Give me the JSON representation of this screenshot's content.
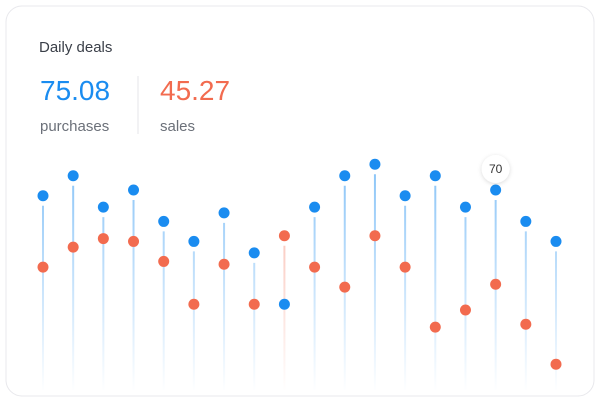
{
  "chart_data": {
    "type": "lollipop",
    "title": "Daily deals",
    "series": [
      {
        "name": "purchases",
        "total": 75.08,
        "color": "#1a8cf0",
        "values": [
          68,
          75,
          64,
          70,
          59,
          52,
          62,
          48,
          30,
          64,
          75,
          79,
          68,
          75,
          64,
          70,
          59,
          52
        ]
      },
      {
        "name": "sales",
        "total": 45.27,
        "color": "#f26b4f",
        "values": [
          43,
          50,
          53,
          52,
          45,
          30,
          44,
          30,
          54,
          43,
          36,
          54,
          43,
          22,
          28,
          37,
          23,
          9
        ]
      }
    ],
    "ylim": [
      0,
      87.5
    ],
    "tooltip_index": 15
  }
}
